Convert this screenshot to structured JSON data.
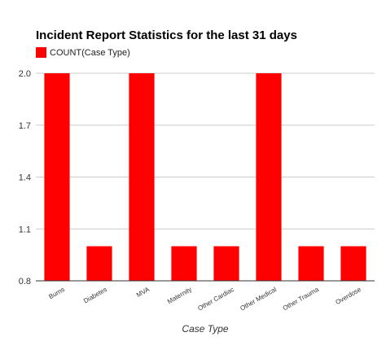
{
  "chart_data": {
    "type": "bar",
    "title": "Incident Report Statistics for the last 31 days",
    "xlabel": "Case Type",
    "ylabel": "",
    "categories": [
      "Burns",
      "Diabetes",
      "MVA",
      "Maternity",
      "Other Cardiac",
      "Other Medical",
      "Other Trauma",
      "Overdose"
    ],
    "series": [
      {
        "name": "COUNT(Case Type)",
        "values": [
          2,
          1,
          2,
          1,
          1,
          2,
          1,
          1
        ],
        "color": "#ff0000"
      }
    ],
    "ylim": [
      0.8,
      2.0
    ],
    "yticks": [
      "0.8",
      "1.1",
      "1.4",
      "1.7",
      "2.0"
    ],
    "grid": true,
    "legend_position": "top-left"
  }
}
